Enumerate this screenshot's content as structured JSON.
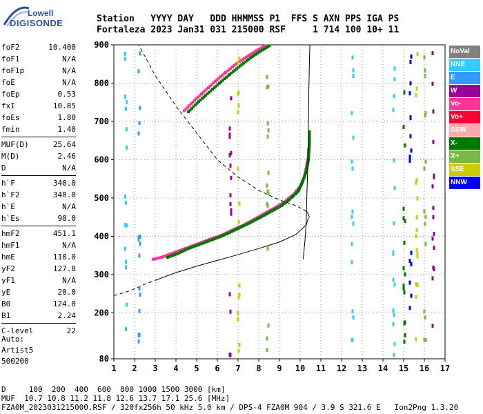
{
  "logo": {
    "line1": "Lowell",
    "line2": "DIGISONDE"
  },
  "header": {
    "row1": "Station   YYYY DAY   DDD HHMMSS P1  FFS S AXN PPS IGA PS",
    "row2": "Fortaleza 2023 Jan31 031 215000 RSF     1 714 100 10+ 11"
  },
  "params": [
    [
      {
        "k": "foF2",
        "v": "10.400"
      },
      {
        "k": "foF1",
        "v": "N/A"
      },
      {
        "k": "foF1p",
        "v": "N/A"
      },
      {
        "k": "foE",
        "v": "N/A"
      },
      {
        "k": "foEp",
        "v": "0.53"
      },
      {
        "k": "fxI",
        "v": "10.85"
      },
      {
        "k": "foEs",
        "v": "1.80"
      },
      {
        "k": "fmin",
        "v": "1.40"
      }
    ],
    [
      {
        "k": "MUF(D)",
        "v": "25.64"
      },
      {
        "k": "M(D)",
        "v": "2.46"
      },
      {
        "k": "D",
        "v": "N/A"
      }
    ],
    [
      {
        "k": "h`F",
        "v": "340.0"
      },
      {
        "k": "h`F2",
        "v": "340.0"
      },
      {
        "k": "h`E",
        "v": "N/A"
      },
      {
        "k": "h`Es",
        "v": "90.0"
      }
    ],
    [
      {
        "k": "hmF2",
        "v": "451.1"
      },
      {
        "k": "hmF1",
        "v": "N/A"
      },
      {
        "k": "hmE",
        "v": "110.0"
      },
      {
        "k": "yF2",
        "v": "127.8"
      },
      {
        "k": "yF1",
        "v": "N/A"
      },
      {
        "k": "yE",
        "v": "20.0"
      },
      {
        "k": "B0",
        "v": "124.0"
      },
      {
        "k": "B1",
        "v": "2.24"
      }
    ],
    [
      {
        "k": "C-level",
        "v": "22"
      }
    ]
  ],
  "auto": {
    "line1": "Auto:",
    "line2": "Artist5",
    "line3": "500200"
  },
  "legend": [
    {
      "label": "NoVal",
      "color": "#808080"
    },
    {
      "label": "NNE",
      "color": "#33ccff"
    },
    {
      "label": "E",
      "color": "#3399ff"
    },
    {
      "label": "W",
      "color": "#990099"
    },
    {
      "label": "Vo-",
      "color": "#ff3399"
    },
    {
      "label": "Vo+",
      "color": "#ff0033"
    },
    {
      "label": "SSW",
      "color": "#ffaaaa"
    },
    {
      "label": "X-",
      "color": "#007700"
    },
    {
      "label": "X+",
      "color": "#77bb44"
    },
    {
      "label": "SSE",
      "color": "#cccc00"
    },
    {
      "label": "NNW",
      "color": "#0000ee"
    }
  ],
  "footer": {
    "row1": "D     100  200  400  600  800 1000 1500 3000 [km]",
    "row2": "MUF  10.7 10.8 11.2 11.8 12.6 13.7 17.1 25.6 [MHz]",
    "row3": "FZA0M_2023031215000.RSF / 320fx256h 50 kHz 5.0 km / DPS-4 FZA0M 904 / 3.9 S 321.6 E   Ion2Png 1.3.20"
  },
  "chart_data": {
    "type": "scatter",
    "x_ticks": [
      "1",
      "2",
      "3",
      "4",
      "5",
      "6",
      "7",
      "8",
      "9",
      "10",
      "11",
      "12",
      "13",
      "14",
      "15",
      "16",
      "17"
    ],
    "y_ticks": [
      "80",
      "200",
      "300",
      "400",
      "500",
      "600",
      "700",
      "800",
      "900"
    ],
    "xlim": [
      1,
      17
    ],
    "ylim": [
      80,
      900
    ],
    "x_unit": "MHz",
    "y_unit": "km",
    "series": [
      {
        "kind": "trace",
        "color": "#ff3399",
        "points": [
          [
            2.9,
            340
          ],
          [
            3.3,
            345
          ],
          [
            3.8,
            355
          ],
          [
            4.3,
            365
          ],
          [
            4.8,
            375
          ],
          [
            5.3,
            385
          ],
          [
            5.8,
            395
          ],
          [
            6.3,
            405
          ],
          [
            6.8,
            418
          ],
          [
            7.3,
            430
          ],
          [
            7.8,
            445
          ],
          [
            8.3,
            460
          ],
          [
            8.8,
            475
          ],
          [
            9.3,
            492
          ],
          [
            9.7,
            510
          ],
          [
            10.0,
            530
          ],
          [
            10.2,
            555
          ],
          [
            10.3,
            580
          ],
          [
            10.4,
            610
          ],
          [
            10.4,
            630
          ]
        ]
      },
      {
        "kind": "trace",
        "color": "#007700",
        "points": [
          [
            3.6,
            345
          ],
          [
            4.1,
            355
          ],
          [
            4.6,
            368
          ],
          [
            5.1,
            378
          ],
          [
            5.6,
            388
          ],
          [
            6.1,
            398
          ],
          [
            6.6,
            410
          ],
          [
            7.1,
            423
          ],
          [
            7.6,
            436
          ],
          [
            8.1,
            450
          ],
          [
            8.6,
            465
          ],
          [
            9.1,
            480
          ],
          [
            9.5,
            497
          ],
          [
            9.9,
            517
          ],
          [
            10.1,
            540
          ],
          [
            10.3,
            570
          ],
          [
            10.4,
            600
          ],
          [
            10.45,
            640
          ],
          [
            10.45,
            680
          ]
        ]
      },
      {
        "kind": "trace",
        "color": "#ff3399",
        "points": [
          [
            4.4,
            728
          ],
          [
            4.9,
            755
          ],
          [
            5.4,
            780
          ],
          [
            5.9,
            805
          ],
          [
            6.4,
            828
          ],
          [
            6.9,
            850
          ],
          [
            7.4,
            868
          ],
          [
            7.9,
            885
          ],
          [
            8.4,
            900
          ]
        ]
      },
      {
        "kind": "trace",
        "color": "#007700",
        "points": [
          [
            4.6,
            725
          ],
          [
            5.1,
            752
          ],
          [
            5.6,
            776
          ],
          [
            6.1,
            800
          ],
          [
            6.6,
            823
          ],
          [
            7.1,
            845
          ],
          [
            7.6,
            866
          ],
          [
            8.1,
            884
          ],
          [
            8.6,
            900
          ]
        ]
      }
    ],
    "profile_solid": [
      [
        10.15,
        340
      ],
      [
        10.25,
        400
      ],
      [
        10.3,
        450
      ],
      [
        10.32,
        500
      ],
      [
        10.35,
        550
      ],
      [
        10.38,
        600
      ],
      [
        10.4,
        680
      ],
      [
        10.42,
        780
      ],
      [
        10.45,
        860
      ],
      [
        10.47,
        900
      ]
    ],
    "profile_dashed_upper": [
      [
        1.5,
        900
      ],
      [
        2.2,
        900
      ],
      [
        3.0,
        820
      ],
      [
        4.0,
        740
      ],
      [
        5.0,
        670
      ],
      [
        6.0,
        600
      ],
      [
        7.0,
        555
      ],
      [
        8.0,
        520
      ],
      [
        9.0,
        495
      ],
      [
        9.8,
        480
      ],
      [
        10.15,
        470
      ]
    ],
    "profile_lower_solid": [
      [
        3.0,
        285
      ],
      [
        4.0,
        305
      ],
      [
        5.0,
        322
      ],
      [
        6.0,
        337
      ],
      [
        7.0,
        352
      ],
      [
        8.0,
        368
      ],
      [
        9.0,
        385
      ],
      [
        9.8,
        405
      ],
      [
        10.3,
        430
      ],
      [
        10.4,
        450
      ]
    ],
    "profile_lower_dashed": [
      [
        1.0,
        245
      ],
      [
        1.8,
        258
      ],
      [
        2.5,
        275
      ],
      [
        3.0,
        285
      ]
    ],
    "profile_knee": [
      [
        10.15,
        470
      ],
      [
        10.35,
        463
      ],
      [
        10.45,
        450
      ]
    ]
  }
}
